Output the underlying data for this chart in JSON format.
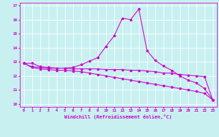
{
  "xlabel": "Windchill (Refroidissement éolien,°C)",
  "bg_color": "#c8f0f0",
  "grid_color": "#ffffff",
  "line_color": "#cc00cc",
  "xlim": [
    -0.5,
    23.5
  ],
  "ylim": [
    9.8,
    17.2
  ],
  "xticks": [
    0,
    1,
    2,
    3,
    4,
    5,
    6,
    7,
    8,
    9,
    10,
    11,
    12,
    13,
    14,
    15,
    16,
    17,
    18,
    19,
    20,
    21,
    22,
    23
  ],
  "yticks": [
    10,
    11,
    12,
    13,
    14,
    15,
    16,
    17
  ],
  "line1_x": [
    0,
    1,
    2,
    3,
    4,
    5,
    6,
    7,
    8,
    9,
    10,
    11,
    12,
    13,
    14,
    15,
    16,
    17,
    18,
    19,
    20,
    21,
    22,
    23
  ],
  "line1_y": [
    12.9,
    12.9,
    12.65,
    12.6,
    12.55,
    12.55,
    12.6,
    12.8,
    13.05,
    13.3,
    14.1,
    14.85,
    16.1,
    16.0,
    16.75,
    13.8,
    13.1,
    12.7,
    12.4,
    12.0,
    11.7,
    11.5,
    11.1,
    10.3
  ],
  "line2_x": [
    0,
    1,
    2,
    3,
    4,
    5,
    6,
    7,
    8,
    9,
    10,
    11,
    12,
    13,
    14,
    15,
    16,
    17,
    18,
    19,
    20,
    21,
    22,
    23
  ],
  "line2_y": [
    12.9,
    12.65,
    12.6,
    12.55,
    12.55,
    12.55,
    12.5,
    12.5,
    12.5,
    12.5,
    12.45,
    12.45,
    12.45,
    12.4,
    12.4,
    12.35,
    12.3,
    12.2,
    12.2,
    12.1,
    12.05,
    12.0,
    11.95,
    10.3
  ],
  "line3_x": [
    0,
    1,
    2,
    3,
    4,
    5,
    6,
    7,
    8,
    9,
    10,
    11,
    12,
    13,
    14,
    15,
    16,
    17,
    18,
    19,
    20,
    21,
    22,
    23
  ],
  "line3_y": [
    12.9,
    12.6,
    12.5,
    12.45,
    12.4,
    12.4,
    12.35,
    12.3,
    12.2,
    12.1,
    12.0,
    11.9,
    11.8,
    11.7,
    11.6,
    11.5,
    11.4,
    11.3,
    11.2,
    11.1,
    11.0,
    10.9,
    10.75,
    10.3
  ]
}
